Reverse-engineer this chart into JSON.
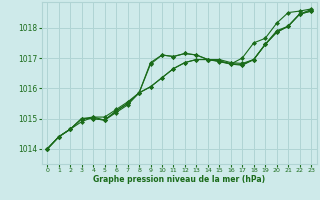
{
  "background_color": "#ceeaea",
  "grid_color": "#b0d4d4",
  "line_color": "#1a6b1a",
  "text_color": "#1a6b1a",
  "xlabel": "Graphe pression niveau de la mer (hPa)",
  "xlim": [
    -0.5,
    23.5
  ],
  "ylim": [
    1013.5,
    1018.85
  ],
  "yticks": [
    1014,
    1015,
    1016,
    1017,
    1018
  ],
  "xticks": [
    0,
    1,
    2,
    3,
    4,
    5,
    6,
    7,
    8,
    9,
    10,
    11,
    12,
    13,
    14,
    15,
    16,
    17,
    18,
    19,
    20,
    21,
    22,
    23
  ],
  "series": [
    [
      1014.0,
      1014.4,
      1014.65,
      1014.9,
      1015.05,
      1015.05,
      1015.3,
      1015.55,
      1015.85,
      1016.05,
      1016.35,
      1016.65,
      1016.85,
      1016.95,
      1016.95,
      1016.9,
      1016.82,
      1016.78,
      1016.95,
      1017.45,
      1017.85,
      1018.05,
      1018.45,
      1018.55
    ],
    [
      1014.0,
      1014.4,
      1014.65,
      1015.0,
      1015.0,
      1014.95,
      1015.2,
      1015.45,
      1015.85,
      1016.8,
      1017.1,
      1017.05,
      1017.15,
      1017.1,
      1016.95,
      1016.95,
      1016.85,
      1016.82,
      1016.95,
      1017.45,
      1017.85,
      1018.05,
      1018.45,
      1018.55
    ],
    [
      1014.0,
      1014.4,
      1014.65,
      1015.0,
      1015.0,
      1014.95,
      1015.25,
      1015.5,
      1015.85,
      1016.85,
      1017.1,
      1017.05,
      1017.15,
      1017.1,
      1016.95,
      1016.9,
      1016.8,
      1017.0,
      1017.5,
      1017.65,
      1018.15,
      1018.5,
      1018.55,
      1018.62
    ],
    [
      1014.0,
      1014.4,
      1014.65,
      1015.0,
      1015.05,
      1014.95,
      1015.25,
      1015.5,
      1015.85,
      1016.05,
      1016.35,
      1016.65,
      1016.85,
      1016.95,
      1016.95,
      1016.88,
      1016.8,
      1016.76,
      1016.95,
      1017.45,
      1017.9,
      1018.05,
      1018.45,
      1018.6
    ]
  ]
}
